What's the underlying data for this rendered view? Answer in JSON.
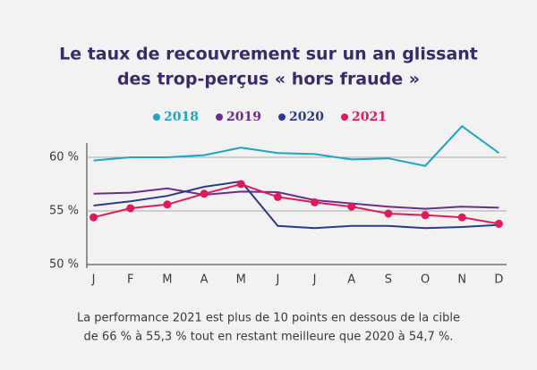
{
  "chart_data": {
    "type": "line",
    "title": [
      "Le taux de recouvrement sur un an glissant",
      "des trop-perçus « hors fraude »"
    ],
    "caption": [
      "La performance 2021 est plus de 10 points en dessous de la cible",
      "de 66 % à 55,3 % tout en restant meilleure que 2020 à 54,7 %."
    ],
    "categories": [
      "J",
      "F",
      "M",
      "A",
      "M",
      "J",
      "J",
      "A",
      "S",
      "O",
      "N",
      "D"
    ],
    "series": [
      {
        "name": "2018",
        "color": "#1ea5c6",
        "values": [
          59.7,
          60.0,
          60.0,
          60.2,
          60.9,
          60.4,
          60.3,
          59.8,
          59.9,
          59.2,
          62.9,
          60.4
        ]
      },
      {
        "name": "2019",
        "color": "#6b2c8f",
        "values": [
          56.6,
          56.7,
          57.1,
          56.5,
          56.8,
          56.75,
          56.0,
          55.7,
          55.4,
          55.2,
          55.4,
          55.3
        ]
      },
      {
        "name": "2020",
        "color": "#2c3a8e",
        "values": [
          55.5,
          55.9,
          56.4,
          57.25,
          57.75,
          53.6,
          53.4,
          53.6,
          53.6,
          53.4,
          53.5,
          53.7
        ]
      },
      {
        "name": "2021",
        "color": "#e0195a",
        "markers": true,
        "values": [
          54.4,
          55.25,
          55.6,
          56.6,
          57.5,
          56.3,
          55.8,
          55.4,
          54.75,
          54.6,
          54.4,
          53.8
        ]
      }
    ],
    "ylim": [
      50,
      63
    ],
    "yticks": [
      {
        "value": 50,
        "label": "50 %"
      },
      {
        "value": 55,
        "label": "55 %"
      },
      {
        "value": 60,
        "label": "60 %"
      }
    ],
    "grid": true
  }
}
